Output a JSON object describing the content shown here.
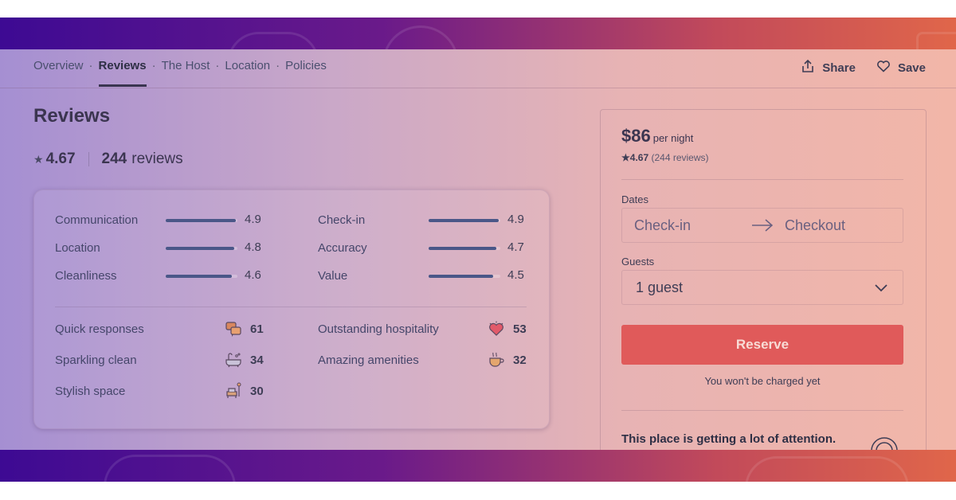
{
  "nav": {
    "tabs": [
      {
        "label": "Overview",
        "active": false
      },
      {
        "label": "Reviews",
        "active": true
      },
      {
        "label": "The Host",
        "active": false
      },
      {
        "label": "Location",
        "active": false
      },
      {
        "label": "Policies",
        "active": false
      }
    ],
    "separator": "·",
    "share_label": "Share",
    "save_label": "Save",
    "share_icon": "share-icon",
    "save_icon": "heart-icon"
  },
  "reviews": {
    "title": "Reviews",
    "star": "★",
    "average": "4.67",
    "count": "244",
    "count_label": "reviews",
    "categories": [
      {
        "label": "Communication",
        "value": "4.9",
        "score": 4.9
      },
      {
        "label": "Location",
        "value": "4.8",
        "score": 4.8
      },
      {
        "label": "Cleanliness",
        "value": "4.6",
        "score": 4.6
      },
      {
        "label": "Check-in",
        "value": "4.9",
        "score": 4.9
      },
      {
        "label": "Accuracy",
        "value": "4.7",
        "score": 4.7
      },
      {
        "label": "Value",
        "value": "4.5",
        "score": 4.5
      }
    ],
    "highlights": [
      {
        "label": "Quick responses",
        "count": "61",
        "icon": "speech-bubbles-icon"
      },
      {
        "label": "Sparkling clean",
        "count": "34",
        "icon": "bathtub-icon"
      },
      {
        "label": "Stylish space",
        "count": "30",
        "icon": "armchair-icon"
      },
      {
        "label": "Outstanding hospitality",
        "count": "53",
        "icon": "heart-icon"
      },
      {
        "label": "Amazing amenities",
        "count": "32",
        "icon": "coffee-cup-icon"
      }
    ]
  },
  "booking": {
    "price": "$86",
    "per": "per night",
    "mini_rating": "4.67",
    "mini_reviews": "(244 reviews)",
    "dates_label": "Dates",
    "checkin_placeholder": "Check-in",
    "checkout_placeholder": "Checkout",
    "guests_label": "Guests",
    "guests_value": "1 guest",
    "reserve_label": "Reserve",
    "note": "You won't be charged yet",
    "attention": "This place is getting a lot of attention."
  },
  "colors": {
    "reserve": "#e05a5a",
    "bar_fill": "#4a5788",
    "gradient_start": "#3d0a93",
    "gradient_end": "#e0664a"
  }
}
